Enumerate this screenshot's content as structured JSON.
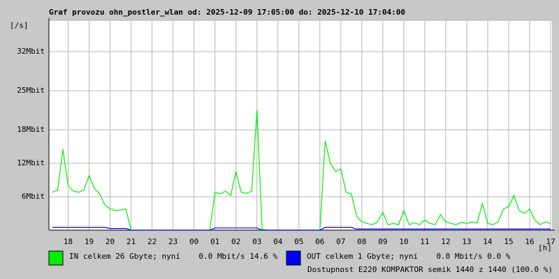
{
  "chart_data": {
    "type": "line",
    "title": "Graf provozu ohn_postler_wlan od: 2025-12-09 17:05:00 do: 2025-12-10 17:04:00",
    "y_label": "[/s]",
    "x_label": "[h]",
    "footnote": "Dostupnost E220 KOMPAKTOR semik 1440 z 1440 (100.0 %)",
    "footnote_color": "#e00000",
    "grid": true,
    "xlim": [
      17.0833,
      41.0667
    ],
    "ylim": [
      0,
      37.5
    ],
    "xticks": [
      18,
      19,
      20,
      21,
      22,
      23,
      {
        "value": 24,
        "label": "00"
      },
      {
        "value": 25,
        "label": "01"
      },
      {
        "value": 26,
        "label": "02"
      },
      {
        "value": 27,
        "label": "03"
      },
      {
        "value": 28,
        "label": "04"
      },
      {
        "value": 29,
        "label": "05"
      },
      {
        "value": 30,
        "label": "06"
      },
      {
        "value": 31,
        "label": "07"
      },
      {
        "value": 32,
        "label": "08"
      },
      {
        "value": 33,
        "label": "09"
      },
      {
        "value": 34,
        "label": "10"
      },
      {
        "value": 35,
        "label": "11"
      },
      {
        "value": 36,
        "label": "12"
      },
      {
        "value": 37,
        "label": "13"
      },
      {
        "value": 38,
        "label": "14"
      },
      {
        "value": 39,
        "label": "15"
      },
      {
        "value": 40,
        "label": "16"
      },
      {
        "value": 41,
        "label": "17"
      }
    ],
    "yticks": [
      {
        "value": 6,
        "label": "6Mbit"
      },
      {
        "value": 12,
        "label": "12Mbit"
      },
      {
        "value": 18,
        "label": "18Mbit"
      },
      {
        "value": 25,
        "label": "25Mbit"
      },
      {
        "value": 32,
        "label": "32Mbit"
      }
    ],
    "x": [
      17.25,
      17.5,
      17.75,
      18,
      18.25,
      18.5,
      18.75,
      19,
      19.25,
      19.5,
      19.75,
      20,
      20.25,
      20.5,
      20.75,
      21,
      21.25,
      21.5,
      21.75,
      22,
      22.25,
      22.5,
      22.75,
      23,
      23.25,
      23.5,
      23.75,
      24,
      24.25,
      24.5,
      24.75,
      25,
      25.25,
      25.5,
      25.75,
      26,
      26.25,
      26.5,
      26.75,
      27,
      27.25,
      27.5,
      27.75,
      28,
      28.25,
      28.5,
      28.75,
      29,
      29.25,
      29.5,
      29.75,
      30,
      30.25,
      30.5,
      30.75,
      31,
      31.25,
      31.5,
      31.75,
      32,
      32.25,
      32.5,
      32.75,
      33,
      33.25,
      33.5,
      33.75,
      34,
      34.25,
      34.5,
      34.75,
      35,
      35.25,
      35.5,
      35.75,
      36,
      36.25,
      36.5,
      36.75,
      37,
      37.25,
      37.5,
      37.75,
      38,
      38.25,
      38.5,
      38.75,
      39,
      39.25,
      39.5,
      39.75,
      40,
      40.25,
      40.5,
      40.75,
      41
    ],
    "series": [
      {
        "name": "IN celkem 26 Gbyte; nyní    0.0 Mbit/s 14.6 %",
        "color": "#00ee00",
        "values": [
          6.8,
          7.2,
          14.5,
          8.0,
          7.0,
          6.8,
          7.2,
          9.8,
          7.5,
          6.5,
          4.5,
          3.8,
          3.5,
          3.6,
          3.8,
          0,
          0,
          0,
          0,
          0,
          0,
          0,
          0,
          0,
          0,
          0,
          0,
          0,
          0,
          0,
          0,
          6.8,
          6.5,
          7.0,
          6.2,
          10.5,
          6.8,
          6.6,
          7.0,
          21.5,
          0.2,
          0,
          0,
          0,
          0,
          0,
          0,
          0,
          0,
          0,
          0,
          0,
          16.0,
          12.0,
          10.5,
          11.0,
          6.8,
          6.5,
          2.5,
          1.5,
          1.2,
          1.0,
          1.5,
          3.2,
          1.0,
          1.2,
          1.0,
          3.5,
          1.0,
          1.3,
          1.0,
          1.8,
          1.2,
          1.0,
          2.8,
          1.5,
          1.2,
          1.0,
          1.4,
          1.2,
          1.5,
          1.3,
          4.8,
          1.2,
          1.0,
          1.5,
          3.8,
          4.2,
          6.2,
          3.5,
          3.0,
          3.8,
          1.8,
          1.0,
          1.5,
          1.2
        ]
      },
      {
        "name": "OUT celkem 1 Gbyte; nyní    0.0 Mbit/s 0.0 %",
        "color": "#0000ff",
        "values": [
          0.5,
          0.5,
          0.5,
          0.5,
          0.5,
          0.5,
          0.5,
          0.5,
          0.5,
          0.5,
          0.5,
          0.3,
          0.3,
          0.3,
          0.3,
          0,
          0,
          0,
          0,
          0,
          0,
          0,
          0,
          0,
          0,
          0,
          0,
          0,
          0,
          0,
          0,
          0.4,
          0.4,
          0.4,
          0.4,
          0.4,
          0.4,
          0.4,
          0.4,
          0.4,
          0,
          0,
          0,
          0,
          0,
          0,
          0,
          0,
          0,
          0,
          0,
          0,
          0.5,
          0.5,
          0.5,
          0.5,
          0.5,
          0.5,
          0.2,
          0.2,
          0.2,
          0.2,
          0.2,
          0.2,
          0.2,
          0.2,
          0.2,
          0.2,
          0.2,
          0.2,
          0.2,
          0.2,
          0.2,
          0.2,
          0.2,
          0.2,
          0.2,
          0.2,
          0.2,
          0.2,
          0.2,
          0.2,
          0.2,
          0.2,
          0.2,
          0.2,
          0.2,
          0.2,
          0.2,
          0.2,
          0.2,
          0.2,
          0.2,
          0.2,
          0.2,
          0.2
        ]
      }
    ]
  }
}
